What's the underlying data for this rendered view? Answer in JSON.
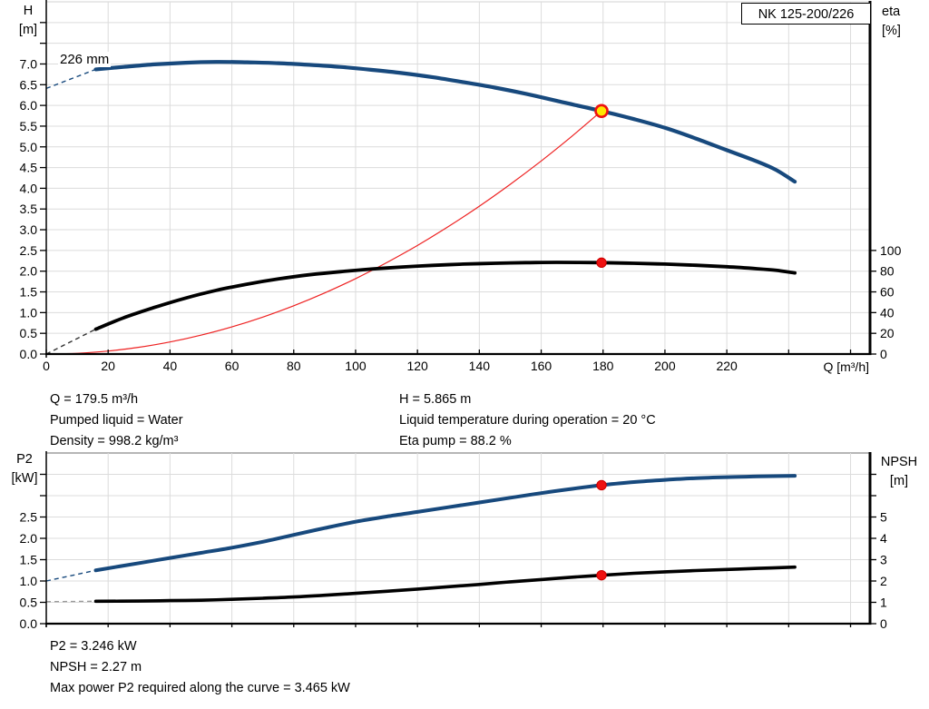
{
  "pump_label_box": {
    "text": "NK 125-200/226"
  },
  "curve_label": "226 mm",
  "info_top": {
    "left": [
      "Q = 179.5 m³/h",
      "Pumped liquid = Water",
      "Density = 998.2 kg/m³"
    ],
    "right": [
      "H = 5.865 m",
      "Liquid temperature during operation = 20 °C",
      "Eta pump = 88.2 %"
    ]
  },
  "info_bottom": [
    "P2 = 3.246 kW",
    "NPSH = 2.27 m",
    "Max power P2 required along the curve = 3.465 kW"
  ],
  "colors": {
    "curve_blue": "#17497d",
    "curve_black": "#000000",
    "system_red": "#ee2222",
    "marker_red": "#ee1111",
    "marker_yellow": "#ffe600",
    "grid": "#dcdcdc",
    "axis": "#000000"
  },
  "chart_data": [
    {
      "type": "line",
      "name": "head-efficiency-chart",
      "title_box": "NK 125-200/226",
      "annotation": "226 mm",
      "x_axis": {
        "title": "Q [m³/h]",
        "min": 0,
        "max": 266.3,
        "ticks": [
          [
            0,
            "0"
          ],
          [
            20,
            "20"
          ],
          [
            40,
            "40"
          ],
          [
            60,
            "60"
          ],
          [
            80,
            "80"
          ],
          [
            100,
            "100"
          ],
          [
            120,
            "120"
          ],
          [
            140,
            "140"
          ],
          [
            160,
            "160"
          ],
          [
            180,
            "180"
          ],
          [
            200,
            "200"
          ],
          [
            220,
            "220"
          ],
          [
            240,
            ""
          ],
          [
            260,
            ""
          ]
        ]
      },
      "left_axis": {
        "title_lines": [
          "H",
          "[m]"
        ],
        "min": 0,
        "max": 8.5,
        "ticks": [
          [
            0,
            "0.0"
          ],
          [
            0.5,
            "0.5"
          ],
          [
            1,
            "1.0"
          ],
          [
            1.5,
            "1.5"
          ],
          [
            2,
            "2.0"
          ],
          [
            2.5,
            "2.5"
          ],
          [
            3,
            "3.0"
          ],
          [
            3.5,
            "3.5"
          ],
          [
            4,
            "4.0"
          ],
          [
            4.5,
            "4.5"
          ],
          [
            5,
            "5.0"
          ],
          [
            5.5,
            "5.5"
          ],
          [
            6,
            "6.0"
          ],
          [
            6.5,
            "6.5"
          ],
          [
            7,
            "7.0"
          ],
          [
            7.5,
            ""
          ],
          [
            8,
            ""
          ]
        ]
      },
      "right_axis": {
        "title_lines": [
          "eta",
          "[%]"
        ],
        "min": 0,
        "max": 340,
        "ticks": [
          [
            0,
            "0"
          ],
          [
            20,
            "20"
          ],
          [
            40,
            "40"
          ],
          [
            60,
            "60"
          ],
          [
            80,
            "80"
          ],
          [
            100,
            "100"
          ]
        ]
      },
      "series": [
        {
          "name": "system-curve",
          "axis": "left",
          "color": "#ee2222",
          "width": 1.2,
          "points": [
            [
              0,
              0
            ],
            [
              10,
              0.018
            ],
            [
              20,
              0.073
            ],
            [
              30,
              0.164
            ],
            [
              40,
              0.291
            ],
            [
              50,
              0.455
            ],
            [
              60,
              0.655
            ],
            [
              70,
              0.892
            ],
            [
              80,
              1.165
            ],
            [
              90,
              1.474
            ],
            [
              100,
              1.82
            ],
            [
              110,
              2.203
            ],
            [
              120,
              2.621
            ],
            [
              130,
              3.077
            ],
            [
              140,
              3.568
            ],
            [
              150,
              4.097
            ],
            [
              160,
              4.66
            ],
            [
              170,
              5.261
            ],
            [
              179.5,
              5.865
            ]
          ]
        },
        {
          "name": "head-curve",
          "axis": "left",
          "color": "#17497d",
          "width": 4.2,
          "lead_dash": {
            "color": "#17497d",
            "points": [
              [
                0,
                6.41
              ],
              [
                16,
                6.87
              ]
            ]
          },
          "points": [
            [
              16,
              6.87
            ],
            [
              25,
              6.93
            ],
            [
              35,
              6.99
            ],
            [
              45,
              7.03
            ],
            [
              55,
              7.05
            ],
            [
              65,
              7.04
            ],
            [
              75,
              7.02
            ],
            [
              85,
              6.98
            ],
            [
              95,
              6.93
            ],
            [
              105,
              6.86
            ],
            [
              115,
              6.78
            ],
            [
              125,
              6.68
            ],
            [
              135,
              6.56
            ],
            [
              145,
              6.43
            ],
            [
              155,
              6.28
            ],
            [
              165,
              6.11
            ],
            [
              179.5,
              5.865
            ],
            [
              190,
              5.67
            ],
            [
              200,
              5.46
            ],
            [
              210,
              5.2
            ],
            [
              220,
              4.92
            ],
            [
              230,
              4.64
            ],
            [
              236,
              4.44
            ],
            [
              242,
              4.16
            ]
          ]
        },
        {
          "name": "efficiency-curve",
          "axis": "right",
          "color": "#000000",
          "width": 3.8,
          "lead_dash": {
            "color": "#333333",
            "points": [
              [
                0,
                0
              ],
              [
                16,
                24
              ]
            ]
          },
          "points": [
            [
              16,
              24
            ],
            [
              25,
              35
            ],
            [
              35,
              45
            ],
            [
              45,
              54
            ],
            [
              55,
              61.5
            ],
            [
              65,
              67.5
            ],
            [
              75,
              72.5
            ],
            [
              85,
              76.5
            ],
            [
              95,
              79.5
            ],
            [
              105,
              82
            ],
            [
              115,
              84
            ],
            [
              125,
              85.6
            ],
            [
              135,
              86.8
            ],
            [
              145,
              87.6
            ],
            [
              155,
              88.2
            ],
            [
              165,
              88.5
            ],
            [
              179.5,
              88.2
            ],
            [
              190,
              87.6
            ],
            [
              200,
              86.8
            ],
            [
              210,
              85.7
            ],
            [
              220,
              84.3
            ],
            [
              230,
              82.3
            ],
            [
              236,
              80.8
            ],
            [
              242,
              78.3
            ]
          ]
        }
      ],
      "markers": [
        {
          "name": "duty-point",
          "axis": "left",
          "x": 179.5,
          "y": 5.865,
          "r": 6.5,
          "fill": "#ffe600",
          "stroke": "#ee1111",
          "stroke_width": 2.6
        },
        {
          "name": "efficiency-point",
          "axis": "right",
          "x": 179.5,
          "y": 88.2,
          "r": 5.2,
          "fill": "#ee1111",
          "stroke": "#cc0000",
          "stroke_width": 1
        }
      ]
    },
    {
      "type": "line",
      "name": "power-npsh-chart",
      "x_axis": {
        "title": "",
        "min": 0,
        "max": 266.3,
        "ticks": [
          [
            0,
            ""
          ],
          [
            20,
            ""
          ],
          [
            40,
            ""
          ],
          [
            60,
            ""
          ],
          [
            80,
            ""
          ],
          [
            100,
            ""
          ],
          [
            120,
            ""
          ],
          [
            140,
            ""
          ],
          [
            160,
            ""
          ],
          [
            180,
            ""
          ],
          [
            200,
            ""
          ],
          [
            220,
            ""
          ],
          [
            240,
            ""
          ],
          [
            260,
            ""
          ]
        ]
      },
      "left_axis": {
        "title_lines": [
          "P2",
          "[kW]"
        ],
        "min": 0,
        "max": 4,
        "ticks": [
          [
            0,
            "0.0"
          ],
          [
            0.5,
            "0.5"
          ],
          [
            1,
            "1.0"
          ],
          [
            1.5,
            "1.5"
          ],
          [
            2,
            "2.0"
          ],
          [
            2.5,
            "2.5"
          ],
          [
            3,
            ""
          ],
          [
            3.5,
            ""
          ]
        ]
      },
      "right_axis": {
        "title_lines": [
          "NPSH",
          "[m]"
        ],
        "min": 0,
        "max": 8,
        "ticks": [
          [
            0,
            "0"
          ],
          [
            1,
            "1"
          ],
          [
            2,
            "2"
          ],
          [
            3,
            "3"
          ],
          [
            4,
            "4"
          ],
          [
            5,
            "5"
          ],
          [
            6,
            ""
          ],
          [
            7,
            ""
          ]
        ]
      },
      "series": [
        {
          "name": "p2-curve",
          "axis": "left",
          "color": "#17497d",
          "width": 4,
          "lead_dash": {
            "color": "#17497d",
            "points": [
              [
                0,
                1.0
              ],
              [
                16,
                1.25
              ]
            ]
          },
          "points": [
            [
              16,
              1.25
            ],
            [
              30,
              1.42
            ],
            [
              40,
              1.54
            ],
            [
              50,
              1.66
            ],
            [
              60,
              1.78
            ],
            [
              70,
              1.92
            ],
            [
              80,
              2.08
            ],
            [
              90,
              2.24
            ],
            [
              100,
              2.39
            ],
            [
              110,
              2.51
            ],
            [
              120,
              2.62
            ],
            [
              130,
              2.73
            ],
            [
              140,
              2.84
            ],
            [
              150,
              2.95
            ],
            [
              160,
              3.06
            ],
            [
              170,
              3.16
            ],
            [
              179.5,
              3.246
            ],
            [
              190,
              3.32
            ],
            [
              200,
              3.37
            ],
            [
              210,
              3.41
            ],
            [
              220,
              3.435
            ],
            [
              230,
              3.45
            ],
            [
              242,
              3.465
            ]
          ]
        },
        {
          "name": "npsh-curve",
          "axis": "right",
          "color": "#000000",
          "width": 3.6,
          "lead_dash": {
            "color": "#9a9a9a",
            "points": [
              [
                0,
                1.03
              ],
              [
                16,
                1.05
              ]
            ]
          },
          "points": [
            [
              16,
              1.05
            ],
            [
              30,
              1.06
            ],
            [
              40,
              1.08
            ],
            [
              50,
              1.1
            ],
            [
              60,
              1.14
            ],
            [
              70,
              1.19
            ],
            [
              80,
              1.25
            ],
            [
              90,
              1.33
            ],
            [
              100,
              1.42
            ],
            [
              110,
              1.52
            ],
            [
              120,
              1.62
            ],
            [
              130,
              1.73
            ],
            [
              140,
              1.84
            ],
            [
              150,
              1.96
            ],
            [
              160,
              2.07
            ],
            [
              170,
              2.18
            ],
            [
              179.5,
              2.27
            ],
            [
              190,
              2.36
            ],
            [
              200,
              2.43
            ],
            [
              210,
              2.49
            ],
            [
              220,
              2.54
            ],
            [
              230,
              2.59
            ],
            [
              242,
              2.65
            ]
          ]
        }
      ],
      "markers": [
        {
          "name": "p2-point",
          "axis": "left",
          "x": 179.5,
          "y": 3.246,
          "r": 5.2,
          "fill": "#ee1111",
          "stroke": "#cc0000",
          "stroke_width": 1
        },
        {
          "name": "npsh-point",
          "axis": "right",
          "x": 179.5,
          "y": 2.27,
          "r": 5.2,
          "fill": "#ee1111",
          "stroke": "#cc0000",
          "stroke_width": 1
        }
      ]
    }
  ]
}
